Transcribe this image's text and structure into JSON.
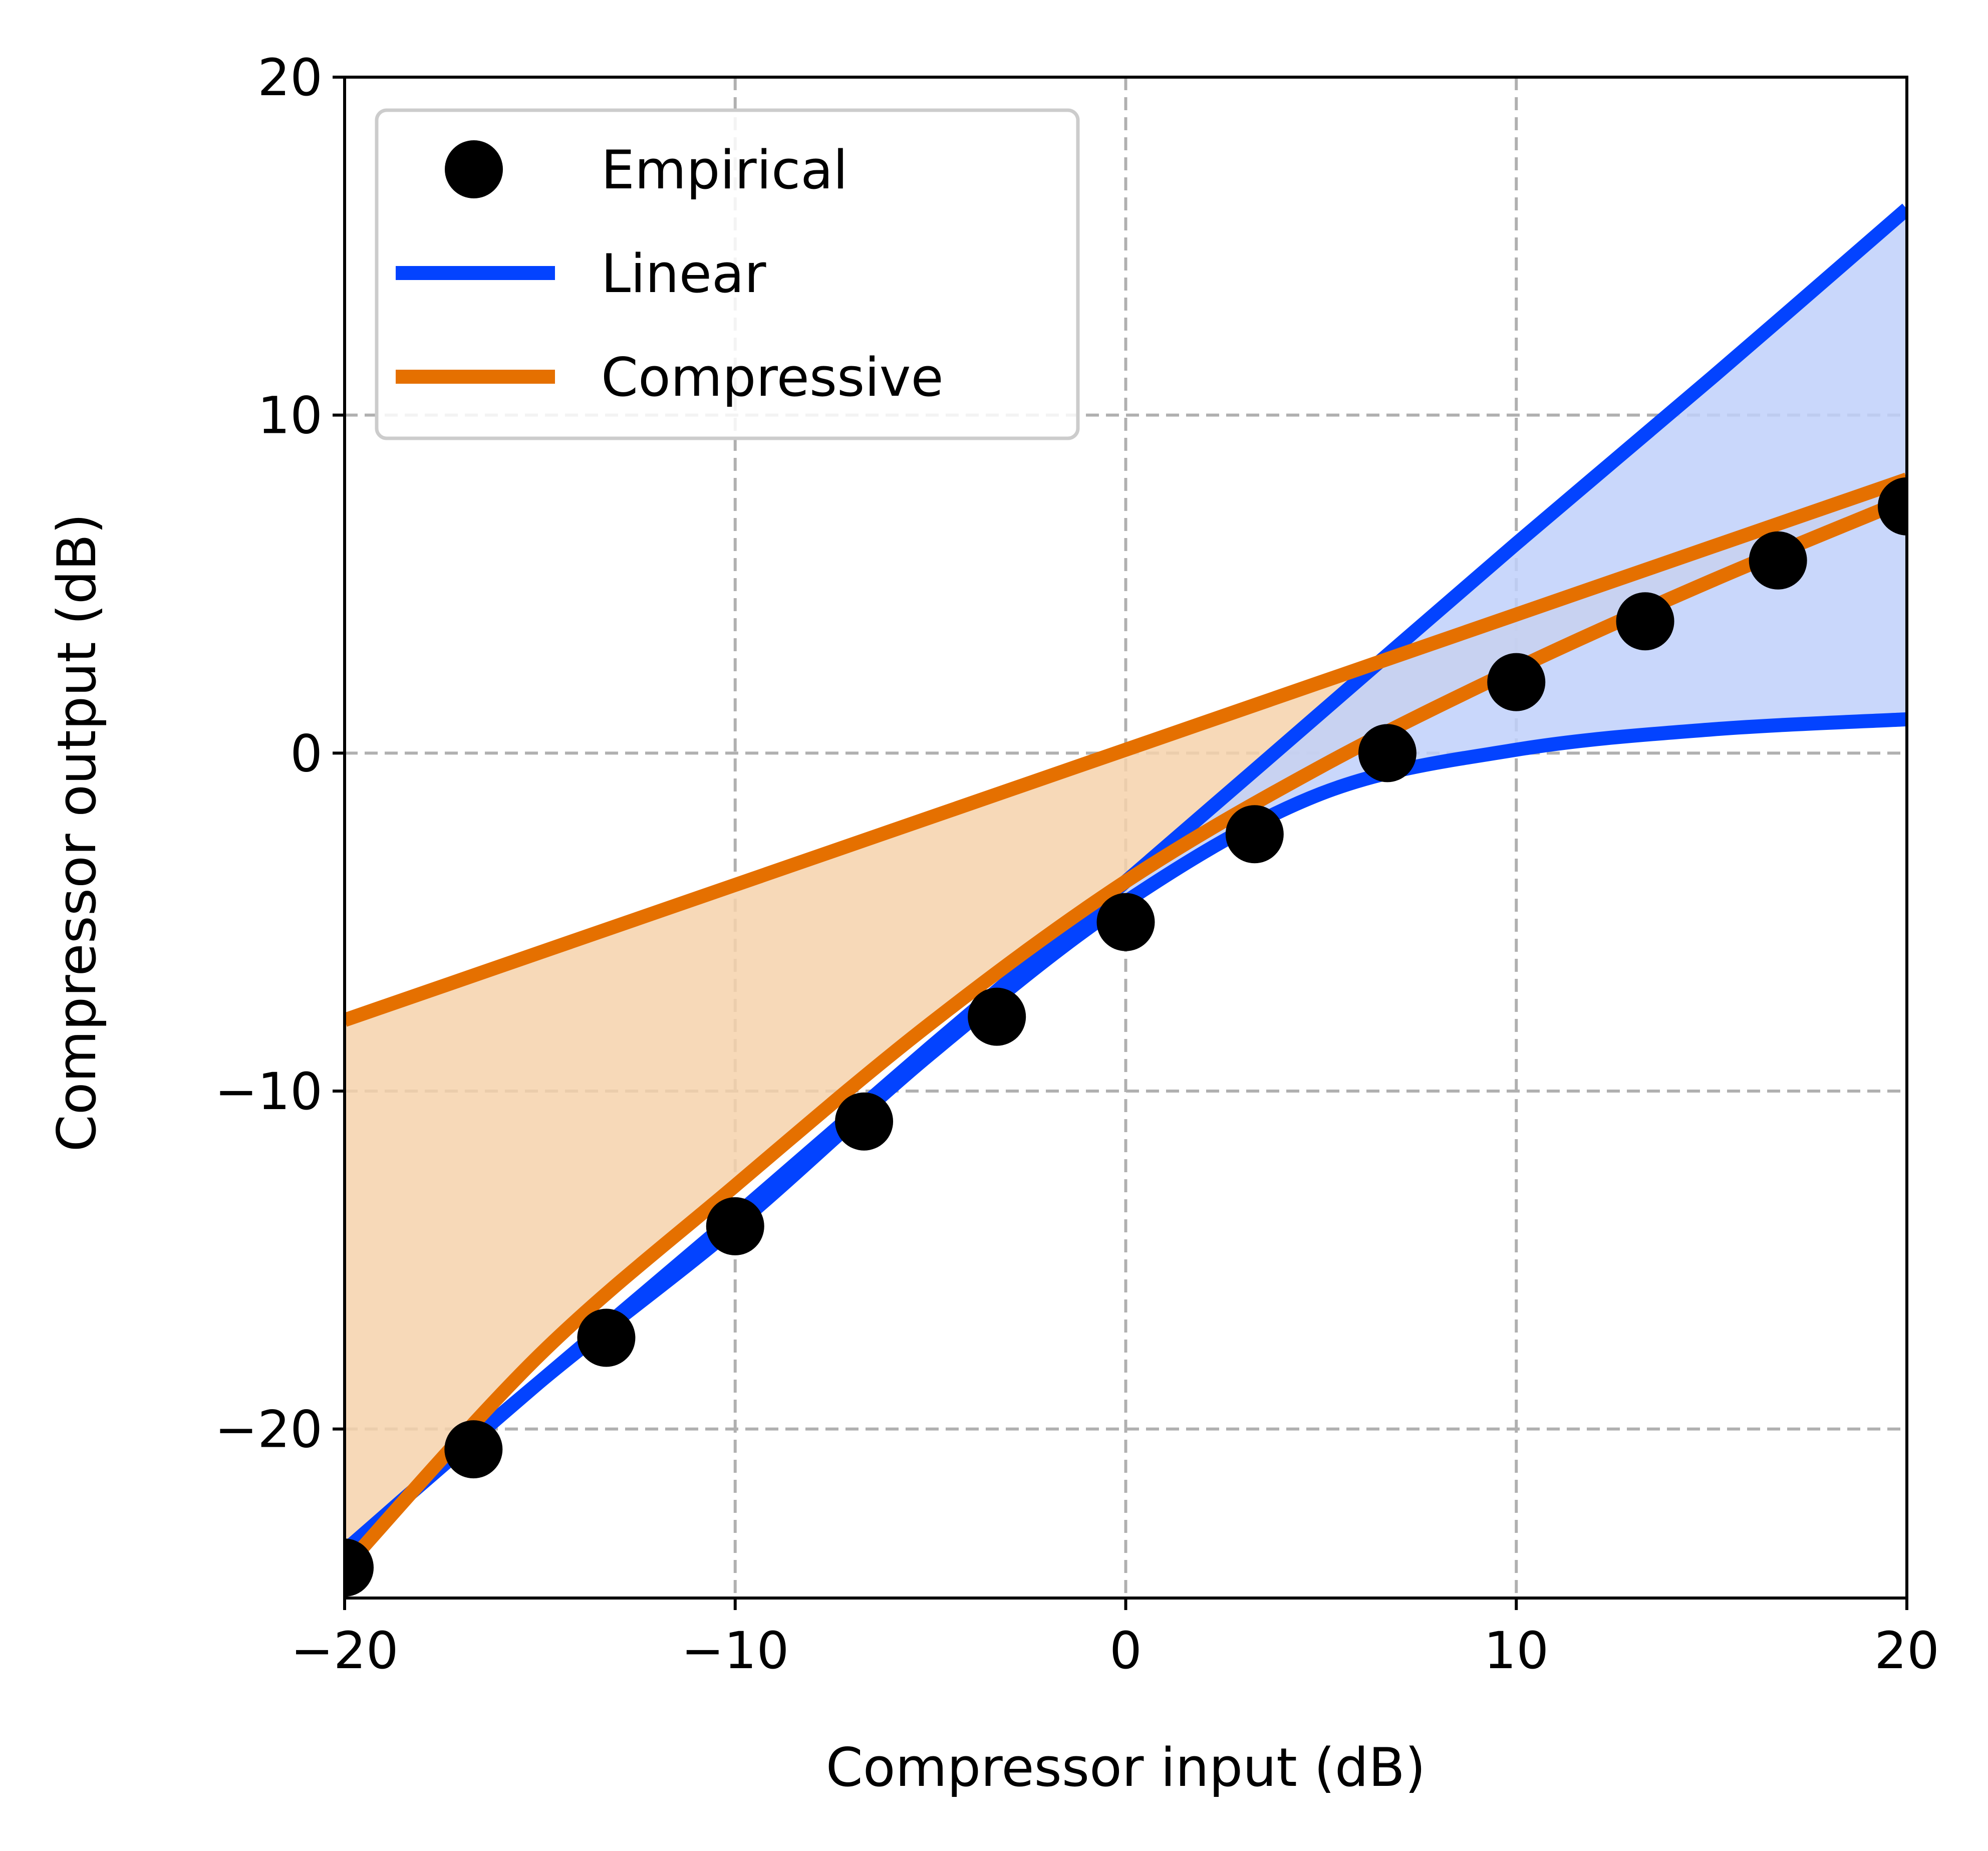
{
  "chart_data": {
    "type": "line",
    "title": "",
    "xlabel": "Compressor input (dB)",
    "ylabel": "Compressor output (dB)",
    "xlim": [
      -20,
      20
    ],
    "ylim": [
      -25,
      20
    ],
    "x_ticks": [
      -20,
      -10,
      0,
      10,
      20
    ],
    "y_ticks": [
      -20,
      -10,
      0,
      10,
      20
    ],
    "x_tick_labels": [
      "−20",
      "−10",
      "0",
      "10",
      "20"
    ],
    "y_tick_labels": [
      "−20",
      "−10",
      "0",
      "10",
      "20"
    ],
    "grid": true,
    "legend_position": "top-left",
    "colors": {
      "linear": "#0343ff",
      "linear_fill": "#c0d0fa",
      "compressive": "#e57000",
      "compressive_fill": "#f6d2ac",
      "empirical": "#000000",
      "grid": "#b0b0b0"
    },
    "legend": [
      {
        "name": "Empirical",
        "kind": "marker"
      },
      {
        "name": "Linear",
        "kind": "line"
      },
      {
        "name": "Compressive",
        "kind": "line"
      }
    ],
    "series": [
      {
        "name": "Empirical",
        "kind": "scatter",
        "x": [
          -20,
          -16.7,
          -13.3,
          -10,
          -6.7,
          -3.3,
          0,
          3.3,
          6.7,
          10,
          13.3,
          16.7,
          20
        ],
        "y": [
          -24.1,
          -20.6,
          -17.3,
          -14.0,
          -10.9,
          -7.8,
          -5.0,
          -2.4,
          0.0,
          2.1,
          3.9,
          5.7,
          7.3
        ]
      },
      {
        "name": "Linear",
        "kind": "band",
        "x": [
          -20,
          -15,
          -10,
          -5,
          0,
          5,
          10,
          15,
          20
        ],
        "y_upper": [
          -23.6,
          -18.6,
          -13.7,
          -8.7,
          -3.8,
          1.2,
          6.2,
          11.1,
          16.1
        ],
        "y_lower": [
          -23.6,
          -18.6,
          -14.0,
          -8.9,
          -4.4,
          -1.2,
          0.1,
          0.7,
          1.0
        ]
      },
      {
        "name": "Compressive",
        "kind": "band",
        "x": [
          -20,
          -15,
          -10,
          -5,
          0,
          5,
          10,
          15,
          20
        ],
        "y_upper": [
          -7.9,
          -5.9,
          -3.9,
          -1.9,
          0.1,
          2.1,
          4.1,
          6.1,
          8.1
        ],
        "y_lower": [
          -24.1,
          -17.8,
          -12.8,
          -8.0,
          -3.8,
          -0.4,
          2.5,
          5.1,
          7.5
        ]
      }
    ]
  }
}
